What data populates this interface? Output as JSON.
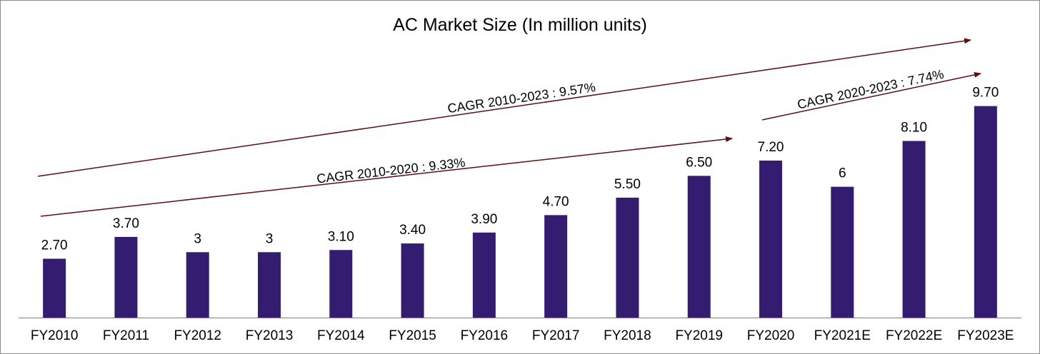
{
  "chart_data": {
    "type": "bar",
    "title": "AC Market Size (In million units)",
    "categories": [
      "FY2010",
      "FY2011",
      "FY2012",
      "FY2013",
      "FY2014",
      "FY2015",
      "FY2016",
      "FY2017",
      "FY2018",
      "FY2019",
      "FY2020",
      "FY2021E",
      "FY2022E",
      "FY2023E"
    ],
    "values": [
      2.7,
      3.7,
      3,
      3,
      3.1,
      3.4,
      3.9,
      4.7,
      5.5,
      6.5,
      7.2,
      6,
      8.1,
      9.7
    ],
    "data_labels": [
      "2.70",
      "3.70",
      "3",
      "3",
      "3.10",
      "3.40",
      "3.90",
      "4.70",
      "5.50",
      "6.50",
      "7.20",
      "6",
      "8.10",
      "9.70"
    ],
    "ylim": [
      0,
      10.8
    ],
    "grid": false,
    "legend": "none",
    "xlabel": "",
    "ylabel": "",
    "bar_color": "#341c70",
    "annotations": [
      {
        "label": "CAGR 2010-2023 : 9.57%",
        "from_category": "FY2010",
        "to_category": "FY2023E",
        "rate_percent": 9.57
      },
      {
        "label": "CAGR 2010-2020 : 9.33%",
        "from_category": "FY2010",
        "to_category": "FY2020",
        "rate_percent": 9.33
      },
      {
        "label": "CAGR 2020-2023 : 7.74%",
        "from_category": "FY2020",
        "to_category": "FY2023E",
        "rate_percent": 7.74
      }
    ],
    "arrow_color": "#5c0f0f"
  }
}
